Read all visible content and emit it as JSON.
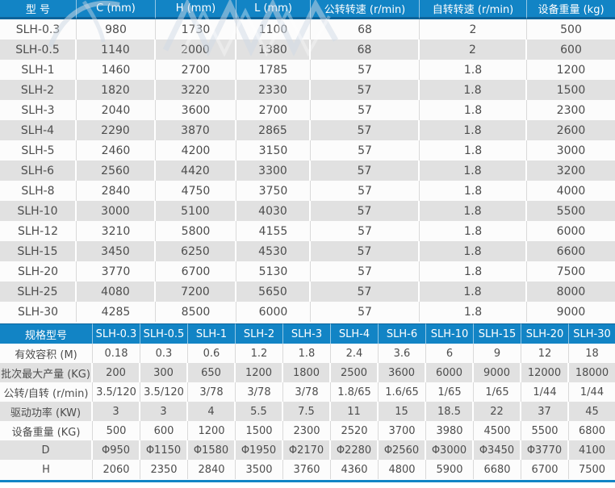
{
  "colors": {
    "header_blue": "#1284c5",
    "header_edge_dark_blue": "#0e639a",
    "row_gray": "#e1e1e1",
    "row_white": "#fcfcfc",
    "text_gray": "#4d4d4d",
    "bottom_rule_blue": "#1284c5"
  },
  "upper_table": {
    "headers": [
      "型 号",
      "C (mm)",
      "H (mm)",
      "L (mm)",
      "公转转速 (r/min)",
      "自转转速 (r/min)",
      "设备重量 (kg)"
    ],
    "rows": [
      [
        "SLH-0.3",
        "980",
        "1730",
        "1100",
        "68",
        "2",
        "500"
      ],
      [
        "SLH-0.5",
        "1140",
        "2000",
        "1380",
        "68",
        "2",
        "600"
      ],
      [
        "SLH-1",
        "1460",
        "2700",
        "1785",
        "57",
        "1.8",
        "1200"
      ],
      [
        "SLH-2",
        "1820",
        "3220",
        "2330",
        "57",
        "1.8",
        "1500"
      ],
      [
        "SLH-3",
        "2040",
        "3600",
        "2700",
        "57",
        "1.8",
        "2300"
      ],
      [
        "SLH-4",
        "2290",
        "3870",
        "2865",
        "57",
        "1.8",
        "2600"
      ],
      [
        "SLH-5",
        "2460",
        "4200",
        "3150",
        "57",
        "1.8",
        "3000"
      ],
      [
        "SLH-6",
        "2560",
        "4420",
        "3300",
        "57",
        "1.8",
        "3200"
      ],
      [
        "SLH-8",
        "2840",
        "4750",
        "3750",
        "57",
        "1.8",
        "4000"
      ],
      [
        "SLH-10",
        "3000",
        "5100",
        "4030",
        "57",
        "1.8",
        "5500"
      ],
      [
        "SLH-12",
        "3210",
        "5800",
        "4155",
        "57",
        "1.8",
        "6000"
      ],
      [
        "SLH-15",
        "3450",
        "6250",
        "4530",
        "57",
        "1.8",
        "6600"
      ],
      [
        "SLH-20",
        "3770",
        "6700",
        "5130",
        "57",
        "1.8",
        "7500"
      ],
      [
        "SLH-25",
        "4080",
        "7200",
        "5650",
        "57",
        "1.8",
        "8000"
      ],
      [
        "SLH-30",
        "4285",
        "8500",
        "6000",
        "57",
        "1.8",
        "9000"
      ]
    ]
  },
  "lower_table": {
    "corner_label": "规格型号",
    "headers": [
      "SLH-0.3",
      "SLH-0.5",
      "SLH-1",
      "SLH-2",
      "SLH-3",
      "SLH-4",
      "SLH-6",
      "SLH-10",
      "SLH-15",
      "SLH-20",
      "SLH-30"
    ],
    "rows": [
      {
        "label": "有效容积 (M)",
        "values": [
          "0.18",
          "0.3",
          "0.6",
          "1.2",
          "1.8",
          "2.4",
          "3.6",
          "6",
          "9",
          "12",
          "18"
        ]
      },
      {
        "label": "批次最大产量 (KG)",
        "values": [
          "200",
          "300",
          "650",
          "1200",
          "1800",
          "2500",
          "3600",
          "6000",
          "9000",
          "12000",
          "18000"
        ]
      },
      {
        "label": "公转/自转 (r/min)",
        "values": [
          "3.5/120",
          "3.5/120",
          "3/78",
          "3/78",
          "3/78",
          "1.8/65",
          "1.6/65",
          "1/65",
          "1/65",
          "1/44",
          "1/44"
        ]
      },
      {
        "label": "驱动功率 (KW)",
        "values": [
          "3",
          "3",
          "4",
          "5.5",
          "7.5",
          "11",
          "15",
          "18.5",
          "22",
          "37",
          "45"
        ]
      },
      {
        "label": "设备重量 (KG)",
        "values": [
          "500",
          "600",
          "1200",
          "1500",
          "2300",
          "2520",
          "3700",
          "3980",
          "4500",
          "5500",
          "6800"
        ]
      },
      {
        "label": "D",
        "values": [
          "Φ950",
          "Φ1150",
          "Φ1580",
          "Φ1950",
          "Φ2170",
          "Φ2280",
          "Φ2560",
          "Φ3000",
          "Φ3450",
          "Φ3770",
          "4100"
        ]
      },
      {
        "label": "H",
        "values": [
          "2060",
          "2350",
          "2840",
          "3500",
          "3760",
          "4360",
          "4800",
          "5900",
          "6680",
          "6700",
          "7500"
        ]
      }
    ]
  }
}
